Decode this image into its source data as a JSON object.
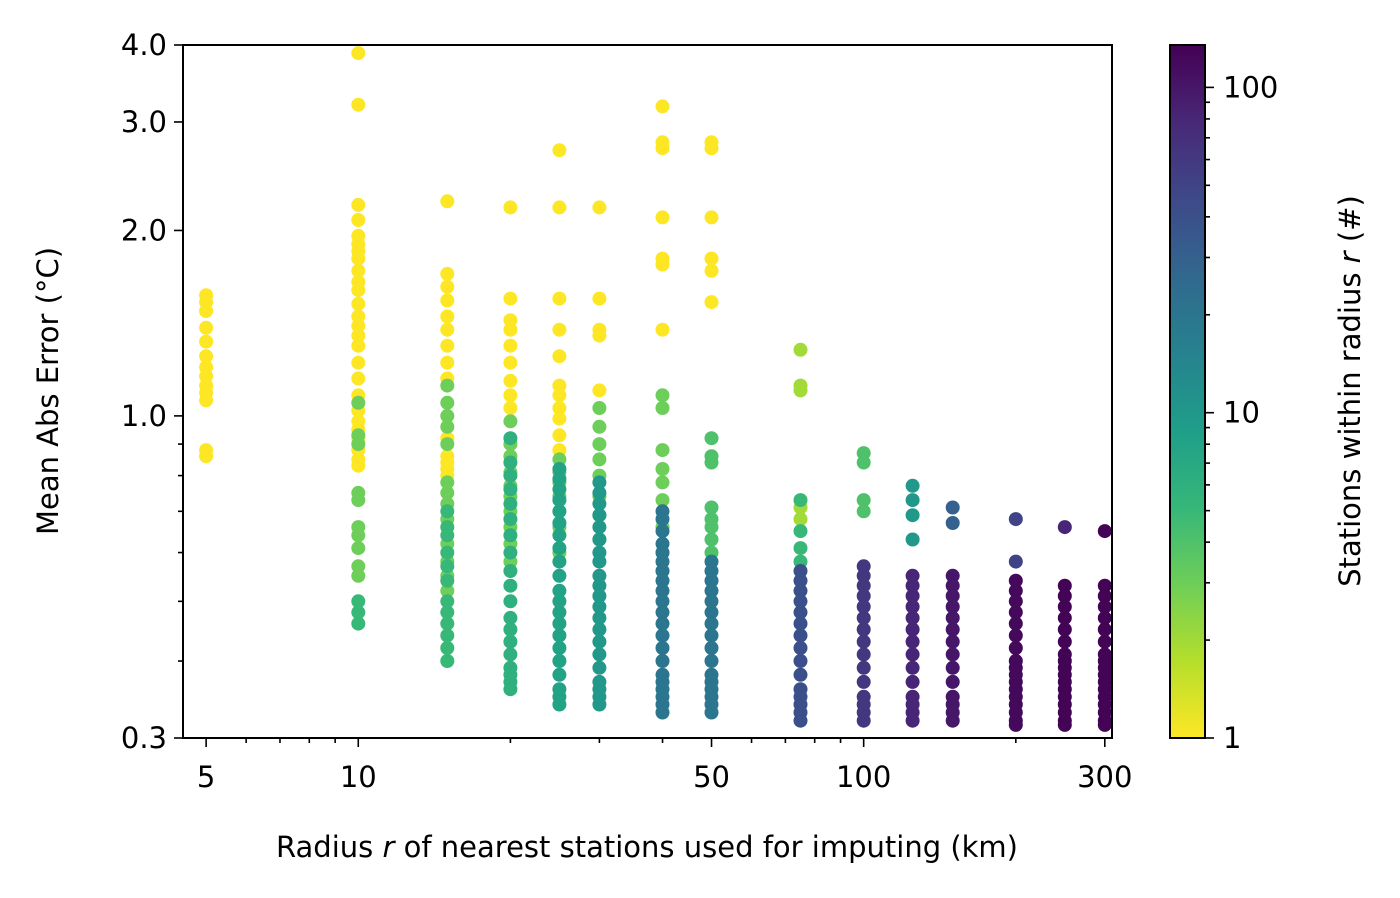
{
  "chart_data": {
    "type": "scatter",
    "title": "",
    "xlabel": {
      "before": "Radius ",
      "italic": "r",
      "after": " of nearest stations used for imputing (km)"
    },
    "ylabel": "Mean Abs Error (°C)",
    "x_scale": "log",
    "y_scale": "log",
    "xlim": [
      4.5,
      310
    ],
    "ylim": [
      0.3,
      4.0
    ],
    "x_ticks": [
      5,
      10,
      50,
      100,
      300
    ],
    "x_tick_labels": [
      "5",
      "10",
      "50",
      "100",
      "300"
    ],
    "y_ticks": [
      0.3,
      1.0,
      2.0,
      3.0,
      4.0
    ],
    "y_tick_labels": [
      "0.3",
      "1.0",
      "2.0",
      "3.0",
      "4.0"
    ],
    "grid": false,
    "colorbar": {
      "label": {
        "before": "Stations within radius ",
        "italic": "r",
        "after": " (#)"
      },
      "scale": "log",
      "range": [
        1,
        135
      ],
      "ticks": [
        1,
        10,
        100
      ],
      "tick_labels": [
        "1",
        "10",
        "100"
      ],
      "colormap": "viridis",
      "colors": [
        "#fde725",
        "#b5de2b",
        "#6ece58",
        "#35b779",
        "#1f9e89",
        "#26828e",
        "#31688e",
        "#3e4989",
        "#482878",
        "#440154"
      ]
    },
    "series": [
      {
        "x": 5,
        "count": 1,
        "y": [
          1.57,
          1.53,
          1.48,
          1.39,
          1.32,
          1.25,
          1.2,
          1.16,
          1.12,
          1.09,
          1.06,
          0.88,
          0.86
        ]
      },
      {
        "x": 10,
        "count": 1,
        "y": [
          3.88,
          3.2,
          2.2,
          2.08,
          1.96,
          1.9,
          1.85,
          1.8,
          1.72,
          1.65,
          1.6,
          1.52,
          1.45,
          1.4,
          1.35,
          1.3,
          1.22,
          1.15,
          1.08,
          1.02,
          0.98,
          0.95,
          0.92,
          0.88,
          0.85,
          0.83
        ]
      },
      {
        "x": 10,
        "count": 3,
        "y": [
          1.05,
          0.93,
          0.9,
          0.75,
          0.73,
          0.66,
          0.64,
          0.61,
          0.57,
          0.55
        ]
      },
      {
        "x": 10,
        "count": 5,
        "y": [
          0.5,
          0.48,
          0.46
        ]
      },
      {
        "x": 15,
        "count": 1,
        "y": [
          2.23,
          1.7,
          1.62,
          1.54,
          1.45,
          1.38,
          1.3,
          1.22,
          1.15,
          0.92,
          0.86,
          0.84,
          0.82,
          0.8
        ]
      },
      {
        "x": 15,
        "count": 3,
        "y": [
          1.12,
          1.05,
          1.0,
          0.96,
          0.9,
          0.78,
          0.75,
          0.72,
          0.68,
          0.62,
          0.58,
          0.55,
          0.52
        ]
      },
      {
        "x": 15,
        "count": 5,
        "y": [
          0.7,
          0.66,
          0.64,
          0.6,
          0.57,
          0.54,
          0.5,
          0.48,
          0.46,
          0.44,
          0.42,
          0.4
        ]
      },
      {
        "x": 20,
        "count": 1,
        "y": [
          2.18,
          1.55,
          1.43,
          1.38,
          1.3,
          1.22,
          1.14,
          1.08,
          1.03
        ]
      },
      {
        "x": 20,
        "count": 3,
        "y": [
          0.98,
          0.9,
          0.86,
          0.81,
          0.77,
          0.74,
          0.7,
          0.66,
          0.62,
          0.58
        ]
      },
      {
        "x": 20,
        "count": 6,
        "y": [
          0.92,
          0.84,
          0.8,
          0.76,
          0.72,
          0.68,
          0.64,
          0.6,
          0.56,
          0.53,
          0.5,
          0.47,
          0.45,
          0.43,
          0.41,
          0.39,
          0.38,
          0.37,
          0.36
        ]
      },
      {
        "x": 25,
        "count": 1,
        "y": [
          2.7,
          2.18,
          1.55,
          1.38,
          1.25,
          1.12,
          1.08,
          1.03,
          0.99,
          0.93,
          0.88
        ]
      },
      {
        "x": 25,
        "count": 3,
        "y": [
          0.85,
          0.81,
          0.78,
          0.74,
          0.7,
          0.66,
          0.6
        ]
      },
      {
        "x": 25,
        "count": 8,
        "y": [
          0.82,
          0.79,
          0.76,
          0.73,
          0.7,
          0.67,
          0.64,
          0.61,
          0.58,
          0.55,
          0.52,
          0.5,
          0.48,
          0.46,
          0.44,
          0.42,
          0.4,
          0.38,
          0.36,
          0.35,
          0.34
        ]
      },
      {
        "x": 30,
        "count": 1,
        "y": [
          2.18,
          1.55,
          1.38,
          1.35,
          1.1
        ]
      },
      {
        "x": 30,
        "count": 3,
        "y": [
          1.03,
          0.96,
          0.9,
          0.85,
          0.8,
          0.74,
          0.69,
          0.63
        ]
      },
      {
        "x": 30,
        "count": 10,
        "y": [
          0.78,
          0.75,
          0.72,
          0.69,
          0.66,
          0.63,
          0.6,
          0.58,
          0.55,
          0.53,
          0.51,
          0.49,
          0.47,
          0.45,
          0.43,
          0.41,
          0.39,
          0.37,
          0.36,
          0.35,
          0.34
        ]
      },
      {
        "x": 40,
        "count": 1,
        "y": [
          3.18,
          2.78,
          2.72,
          2.1,
          1.8,
          1.76,
          1.38
        ]
      },
      {
        "x": 40,
        "count": 3,
        "y": [
          1.08,
          1.03,
          0.88,
          0.82,
          0.78,
          0.73,
          0.66,
          0.6,
          0.56
        ]
      },
      {
        "x": 40,
        "count": 20,
        "y": [
          0.7,
          0.68,
          0.65,
          0.62,
          0.6,
          0.58,
          0.56,
          0.54,
          0.52,
          0.5,
          0.48,
          0.46,
          0.44,
          0.42,
          0.4,
          0.38,
          0.37,
          0.36,
          0.35,
          0.34,
          0.33
        ]
      },
      {
        "x": 50,
        "count": 1,
        "y": [
          2.78,
          2.72,
          2.1,
          1.8,
          1.72,
          1.53
        ]
      },
      {
        "x": 50,
        "count": 4,
        "y": [
          0.92,
          0.86,
          0.84,
          0.71,
          0.68,
          0.66,
          0.63,
          0.6
        ]
      },
      {
        "x": 50,
        "count": 20,
        "y": [
          0.58,
          0.56,
          0.54,
          0.52,
          0.5,
          0.48,
          0.46,
          0.44,
          0.42,
          0.4,
          0.38,
          0.37,
          0.36,
          0.35,
          0.34,
          0.33
        ]
      },
      {
        "x": 75,
        "count": 2,
        "y": [
          1.28,
          1.12,
          1.1,
          0.71,
          0.68
        ]
      },
      {
        "x": 75,
        "count": 5,
        "y": [
          0.73,
          0.65,
          0.61,
          0.58
        ]
      },
      {
        "x": 75,
        "count": 40,
        "y": [
          0.56,
          0.54,
          0.52,
          0.5,
          0.48,
          0.46,
          0.44,
          0.42,
          0.4,
          0.38,
          0.36,
          0.35,
          0.34,
          0.33,
          0.32
        ]
      },
      {
        "x": 100,
        "count": 4,
        "y": [
          0.87,
          0.84,
          0.73,
          0.7
        ]
      },
      {
        "x": 100,
        "count": 60,
        "y": [
          0.57,
          0.55,
          0.53,
          0.51,
          0.49,
          0.47,
          0.45,
          0.43,
          0.41,
          0.39,
          0.37,
          0.35,
          0.34,
          0.33,
          0.32
        ]
      },
      {
        "x": 125,
        "count": 10,
        "y": [
          0.77,
          0.73,
          0.69,
          0.63
        ]
      },
      {
        "x": 125,
        "count": 80,
        "y": [
          0.55,
          0.53,
          0.51,
          0.49,
          0.47,
          0.45,
          0.43,
          0.41,
          0.39,
          0.37,
          0.35,
          0.34,
          0.33,
          0.32
        ]
      },
      {
        "x": 150,
        "count": 30,
        "y": [
          0.71,
          0.67
        ]
      },
      {
        "x": 150,
        "count": 100,
        "y": [
          0.55,
          0.53,
          0.51,
          0.49,
          0.47,
          0.45,
          0.43,
          0.41,
          0.39,
          0.37,
          0.35,
          0.34,
          0.33,
          0.32
        ]
      },
      {
        "x": 200,
        "count": 50,
        "y": [
          0.68,
          0.58
        ]
      },
      {
        "x": 200,
        "count": 120,
        "y": [
          0.54,
          0.52,
          0.5,
          0.48,
          0.46,
          0.44,
          0.42,
          0.4,
          0.39,
          0.38,
          0.37,
          0.36,
          0.35,
          0.34,
          0.33,
          0.32,
          0.315
        ]
      },
      {
        "x": 250,
        "count": 80,
        "y": [
          0.66
        ]
      },
      {
        "x": 250,
        "count": 130,
        "y": [
          0.53,
          0.51,
          0.49,
          0.47,
          0.45,
          0.43,
          0.41,
          0.4,
          0.39,
          0.38,
          0.37,
          0.36,
          0.35,
          0.34,
          0.33,
          0.32,
          0.315
        ]
      },
      {
        "x": 300,
        "count": 130,
        "y": [
          0.65,
          0.53,
          0.51,
          0.49,
          0.47,
          0.45,
          0.43,
          0.41,
          0.4,
          0.39,
          0.38,
          0.37,
          0.36,
          0.35,
          0.34,
          0.33,
          0.32,
          0.315
        ]
      }
    ]
  }
}
